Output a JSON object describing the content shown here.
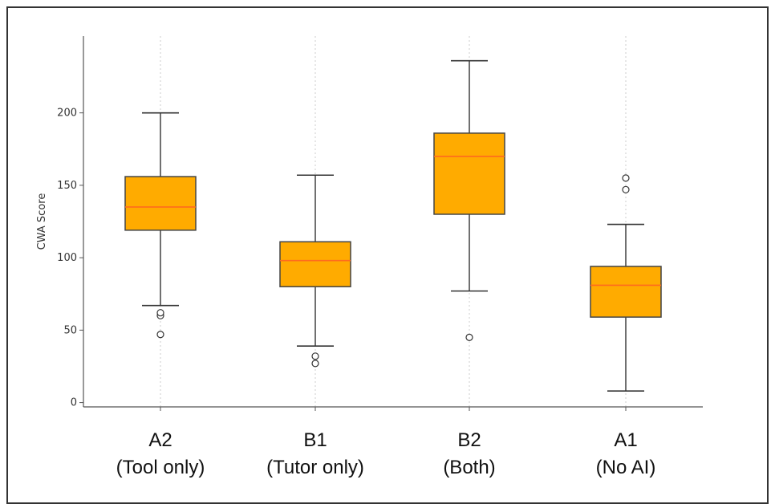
{
  "chart_data": {
    "type": "box",
    "ylabel": "CWA Score",
    "xlabel": "",
    "title": "",
    "ylim": [
      -3,
      253
    ],
    "yticks": [
      0,
      50,
      100,
      150,
      200
    ],
    "grid": {
      "x": true,
      "y": false
    },
    "colors": {
      "box_fill": "#ffab00",
      "box_edge": "#444444",
      "median": "#ff6a1e",
      "whisker": "#333333",
      "grid": "#cccccc"
    },
    "categories": [
      {
        "line1": "A2",
        "line2": "(Tool only)"
      },
      {
        "line1": "B1",
        "line2": "(Tutor only)"
      },
      {
        "line1": "B2",
        "line2": "(Both)"
      },
      {
        "line1": "A1",
        "line2": "(No AI)"
      }
    ],
    "boxes": [
      {
        "whisker_low": 67,
        "q1": 119,
        "median": 135,
        "q3": 156,
        "whisker_high": 200,
        "outliers": [
          47,
          60,
          62
        ]
      },
      {
        "whisker_low": 39,
        "q1": 80,
        "median": 98,
        "q3": 111,
        "whisker_high": 157,
        "outliers": [
          27,
          32
        ]
      },
      {
        "whisker_low": 77,
        "q1": 130,
        "median": 170,
        "q3": 186,
        "whisker_high": 236,
        "outliers": [
          45
        ]
      },
      {
        "whisker_low": 8,
        "q1": 59,
        "median": 81,
        "q3": 94,
        "whisker_high": 123,
        "outliers": [
          147,
          155
        ]
      }
    ]
  }
}
